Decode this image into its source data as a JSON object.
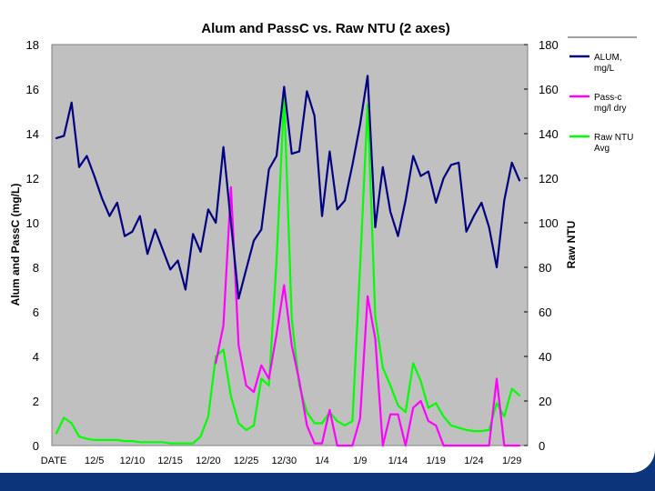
{
  "chart_data": {
    "type": "line",
    "title": "Alum and PassC vs. Raw NTU (2 axes)",
    "ylabel_left": "Alum and PassC (mg/L)",
    "ylabel_right": "Raw NTU",
    "ylim_left": [
      0,
      18
    ],
    "ylim_right": [
      0,
      180
    ],
    "yticks_left": [
      "0",
      "2",
      "4",
      "6",
      "8",
      "10",
      "12",
      "14",
      "16",
      "18"
    ],
    "yticks_right": [
      "0",
      "20",
      "40",
      "60",
      "80",
      "100",
      "120",
      "140",
      "160",
      "180"
    ],
    "x_tick_labels": [
      "DATE",
      "12/5",
      "12/10",
      "12/15",
      "12/20",
      "12/25",
      "12/30",
      "1/4",
      "1/9",
      "1/14",
      "1/19",
      "1/24",
      "1/29"
    ],
    "x_count": 62,
    "plot_background": "#c0c0c0",
    "legend_position": "right",
    "series": [
      {
        "name": "ALUM, mg/L",
        "axis": "left",
        "color": "#000080",
        "values": [
          13.8,
          13.9,
          15.4,
          12.5,
          13.0,
          12.1,
          11.1,
          10.3,
          10.9,
          9.4,
          9.6,
          10.3,
          8.6,
          9.7,
          8.8,
          7.9,
          8.3,
          7.0,
          9.5,
          8.7,
          10.6,
          10.0,
          13.4,
          10.0,
          6.6,
          7.9,
          9.2,
          9.7,
          12.4,
          13.0,
          16.1,
          13.1,
          13.2,
          15.9,
          14.8,
          10.3,
          13.2,
          10.6,
          11.0,
          12.6,
          14.4,
          16.6,
          9.8,
          12.5,
          10.5,
          9.4,
          11.0,
          13.0,
          12.1,
          12.3,
          10.9,
          12.0,
          12.6,
          12.7,
          9.6,
          10.3,
          10.9,
          9.8,
          8.0,
          11.0,
          12.7,
          11.9
        ]
      },
      {
        "name": "Pass-c mg/l dry",
        "axis": "left",
        "color": "#ff00ff",
        "values": [
          null,
          null,
          null,
          null,
          null,
          null,
          null,
          null,
          null,
          null,
          null,
          null,
          null,
          null,
          null,
          null,
          null,
          null,
          null,
          null,
          null,
          3.7,
          5.4,
          11.6,
          4.5,
          2.7,
          2.4,
          3.6,
          3.0,
          5.0,
          7.2,
          4.5,
          2.9,
          0.9,
          0.1,
          0.1,
          1.6,
          0.0,
          0.0,
          0.0,
          1.2,
          6.7,
          4.8,
          0.0,
          1.4,
          1.4,
          0.0,
          1.7,
          2.0,
          1.1,
          0.9,
          0.0,
          0.0,
          0.0,
          0.0,
          0.0,
          0.0,
          0.0,
          3.0,
          0.0,
          0.0,
          0.0
        ]
      },
      {
        "name": "Raw NTU Avg",
        "axis": "right",
        "color": "#00ff00",
        "values": [
          5.5,
          12.5,
          10.0,
          4.0,
          3.0,
          2.5,
          2.5,
          2.5,
          2.5,
          2.0,
          2.0,
          1.5,
          1.5,
          1.5,
          1.5,
          1.0,
          1.0,
          1.0,
          1.0,
          4.0,
          13.0,
          40.0,
          43.0,
          22.0,
          10.0,
          7.0,
          9.0,
          30.0,
          27.0,
          83.0,
          157.0,
          57.0,
          27.0,
          15.0,
          10.0,
          10.0,
          15.0,
          11.0,
          9.0,
          11.0,
          80.0,
          153.0,
          58.0,
          35.0,
          27.0,
          18.0,
          15.0,
          37.0,
          29.0,
          17.0,
          19.0,
          13.0,
          9.0,
          8.0,
          7.0,
          6.5,
          6.5,
          7.0,
          19.0,
          13.0,
          25.5,
          22.5
        ]
      }
    ]
  },
  "legend": {
    "items": [
      {
        "line1": "ALUM,",
        "line2": "mg/L",
        "color": "#000080"
      },
      {
        "line1": "Pass-c",
        "line2": "mg/l dry",
        "color": "#ff00ff"
      },
      {
        "line1": "Raw NTU",
        "line2": "Avg",
        "color": "#00ff00"
      }
    ]
  }
}
